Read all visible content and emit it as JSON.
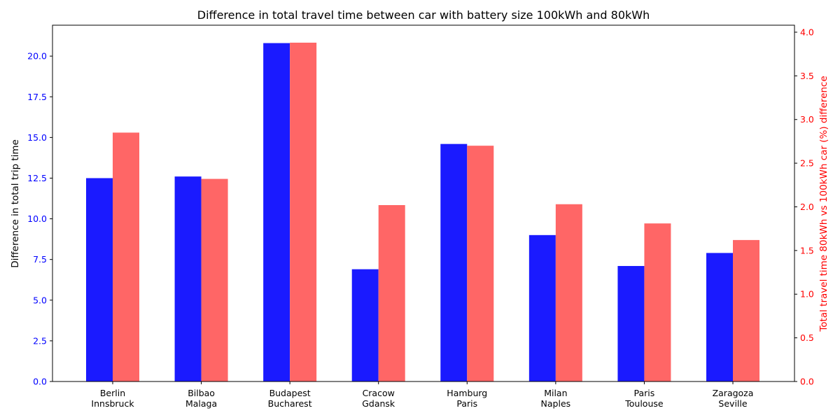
{
  "chart_data": {
    "type": "bar",
    "title": "Difference in total travel time between car with battery size 100kWh and 80kWh",
    "categories": [
      [
        "Berlin",
        "Innsbruck"
      ],
      [
        "Bilbao",
        "Malaga"
      ],
      [
        "Budapest",
        "Bucharest"
      ],
      [
        "Cracow",
        "Gdansk"
      ],
      [
        "Hamburg",
        "Paris"
      ],
      [
        "Milan",
        "Naples"
      ],
      [
        "Paris",
        "Toulouse"
      ],
      [
        "Zaragoza",
        "Seville"
      ]
    ],
    "series": [
      {
        "axis": "left",
        "color": "#1a1aff",
        "values": [
          12.5,
          12.6,
          20.8,
          6.9,
          14.6,
          9.0,
          7.1,
          7.9
        ]
      },
      {
        "axis": "right",
        "color": "#ff6666",
        "values": [
          2.85,
          2.32,
          3.88,
          2.02,
          2.7,
          2.03,
          1.81,
          1.62
        ]
      }
    ],
    "ylabel_left": "Difference in total trip time",
    "ylabel_right": "Total travel time 80kWh vs 100kWh car (%) difference",
    "ylim_left": [
      0,
      21.9
    ],
    "ylim_right": [
      0,
      4.08
    ],
    "yticks_left": [
      "0.0",
      "2.5",
      "5.0",
      "7.5",
      "10.0",
      "12.5",
      "15.0",
      "17.5",
      "20.0"
    ],
    "yticks_right": [
      "0.0",
      "0.5",
      "1.0",
      "1.5",
      "2.0",
      "2.5",
      "3.0",
      "3.5",
      "4.0"
    ],
    "left_tick_color": "#0000ff",
    "right_tick_color": "#ff0000",
    "grid": false,
    "legend": "none"
  }
}
